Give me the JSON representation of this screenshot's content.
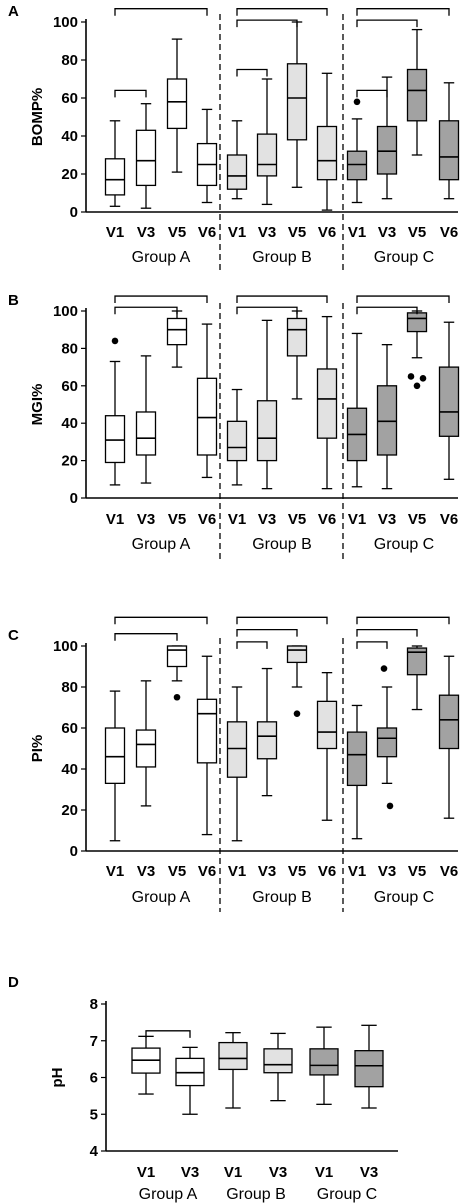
{
  "chart_data": [
    {
      "type": "box",
      "panel": "A",
      "ylabel": "BOMP%",
      "ylim": [
        0,
        100
      ],
      "yticks": [
        0,
        20,
        40,
        60,
        80,
        100
      ],
      "groups": [
        "Group A",
        "Group B",
        "Group C"
      ],
      "categories": [
        "V1",
        "V3",
        "V5",
        "V6"
      ],
      "group_dividers": "dashed",
      "group_fills": [
        "#ffffff",
        "#e2e2e2",
        "#a2a2a2"
      ],
      "boxes": [
        {
          "group": 0,
          "cat": 0,
          "min": 3,
          "q1": 9,
          "median": 17,
          "q3": 28,
          "max": 48,
          "outliers": []
        },
        {
          "group": 0,
          "cat": 1,
          "min": 2,
          "q1": 14,
          "median": 27,
          "q3": 43,
          "max": 57,
          "outliers": []
        },
        {
          "group": 0,
          "cat": 2,
          "min": 21,
          "q1": 44,
          "median": 58,
          "q3": 70,
          "max": 91,
          "outliers": []
        },
        {
          "group": 0,
          "cat": 3,
          "min": 5,
          "q1": 14,
          "median": 25,
          "q3": 36,
          "max": 54,
          "outliers": []
        },
        {
          "group": 1,
          "cat": 0,
          "min": 7,
          "q1": 12,
          "median": 19,
          "q3": 30,
          "max": 48,
          "outliers": []
        },
        {
          "group": 1,
          "cat": 1,
          "min": 4,
          "q1": 19,
          "median": 25,
          "q3": 41,
          "max": 70,
          "outliers": []
        },
        {
          "group": 1,
          "cat": 2,
          "min": 13,
          "q1": 38,
          "median": 60,
          "q3": 78,
          "max": 100,
          "outliers": []
        },
        {
          "group": 1,
          "cat": 3,
          "min": 1,
          "q1": 17,
          "median": 27,
          "q3": 45,
          "max": 73,
          "outliers": []
        },
        {
          "group": 2,
          "cat": 0,
          "min": 5,
          "q1": 17,
          "median": 25,
          "q3": 32,
          "max": 49,
          "outliers": [
            58
          ]
        },
        {
          "group": 2,
          "cat": 1,
          "min": 7,
          "q1": 20,
          "median": 32,
          "q3": 45,
          "max": 71,
          "outliers": []
        },
        {
          "group": 2,
          "cat": 2,
          "min": 30,
          "q1": 48,
          "median": 64,
          "q3": 75,
          "max": 96,
          "outliers": []
        },
        {
          "group": 2,
          "cat": 3,
          "min": 7,
          "q1": 17,
          "median": 29,
          "q3": 48,
          "max": 68,
          "outliers": []
        }
      ],
      "brackets": [
        {
          "group": 0,
          "from": 0,
          "to": 3,
          "y": 107
        },
        {
          "group": 0,
          "from": 0,
          "to": 1,
          "y": 64
        },
        {
          "group": 1,
          "from": 0,
          "to": 3,
          "y": 107
        },
        {
          "group": 1,
          "from": 0,
          "to": 2,
          "y": 101
        },
        {
          "group": 1,
          "from": 0,
          "to": 1,
          "y": 75
        },
        {
          "group": 2,
          "from": 0,
          "to": 3,
          "y": 107
        },
        {
          "group": 2,
          "from": 0,
          "to": 2,
          "y": 101
        },
        {
          "group": 2,
          "from": 0,
          "to": 1,
          "y": 64
        }
      ]
    },
    {
      "type": "box",
      "panel": "B",
      "ylabel": "MGI%",
      "ylim": [
        0,
        100
      ],
      "yticks": [
        0,
        20,
        40,
        60,
        80,
        100
      ],
      "groups": [
        "Group A",
        "Group B",
        "Group C"
      ],
      "categories": [
        "V1",
        "V3",
        "V5",
        "V6"
      ],
      "group_dividers": "dashed",
      "group_fills": [
        "#ffffff",
        "#e2e2e2",
        "#a2a2a2"
      ],
      "boxes": [
        {
          "group": 0,
          "cat": 0,
          "min": 7,
          "q1": 19,
          "median": 31,
          "q3": 44,
          "max": 73,
          "outliers": [
            84
          ]
        },
        {
          "group": 0,
          "cat": 1,
          "min": 8,
          "q1": 23,
          "median": 32,
          "q3": 46,
          "max": 76,
          "outliers": []
        },
        {
          "group": 0,
          "cat": 2,
          "min": 70,
          "q1": 82,
          "median": 90,
          "q3": 96,
          "max": 100,
          "outliers": []
        },
        {
          "group": 0,
          "cat": 3,
          "min": 11,
          "q1": 23,
          "median": 43,
          "q3": 64,
          "max": 93,
          "outliers": []
        },
        {
          "group": 1,
          "cat": 0,
          "min": 7,
          "q1": 20,
          "median": 27,
          "q3": 41,
          "max": 58,
          "outliers": []
        },
        {
          "group": 1,
          "cat": 1,
          "min": 5,
          "q1": 20,
          "median": 32,
          "q3": 52,
          "max": 95,
          "outliers": []
        },
        {
          "group": 1,
          "cat": 2,
          "min": 53,
          "q1": 76,
          "median": 90,
          "q3": 96,
          "max": 100,
          "outliers": []
        },
        {
          "group": 1,
          "cat": 3,
          "min": 5,
          "q1": 32,
          "median": 53,
          "q3": 69,
          "max": 97,
          "outliers": []
        },
        {
          "group": 2,
          "cat": 0,
          "min": 6,
          "q1": 20,
          "median": 34,
          "q3": 48,
          "max": 88,
          "outliers": []
        },
        {
          "group": 2,
          "cat": 1,
          "min": 5,
          "q1": 23,
          "median": 41,
          "q3": 60,
          "max": 82,
          "outliers": []
        },
        {
          "group": 2,
          "cat": 2,
          "min": 75,
          "q1": 89,
          "median": 96,
          "q3": 99,
          "max": 100,
          "outliers": [
            65,
            60,
            64
          ]
        },
        {
          "group": 2,
          "cat": 3,
          "min": 10,
          "q1": 33,
          "median": 46,
          "q3": 70,
          "max": 94,
          "outliers": []
        }
      ],
      "brackets": [
        {
          "group": 0,
          "from": 0,
          "to": 3,
          "y": 108
        },
        {
          "group": 0,
          "from": 0,
          "to": 2,
          "y": 102
        },
        {
          "group": 1,
          "from": 0,
          "to": 3,
          "y": 108
        },
        {
          "group": 1,
          "from": 0,
          "to": 2,
          "y": 102
        },
        {
          "group": 2,
          "from": 0,
          "to": 3,
          "y": 108
        },
        {
          "group": 2,
          "from": 0,
          "to": 2,
          "y": 102
        }
      ]
    },
    {
      "type": "box",
      "panel": "C",
      "ylabel": "PI%",
      "ylim": [
        0,
        100
      ],
      "yticks": [
        0,
        20,
        40,
        60,
        80,
        100
      ],
      "groups": [
        "Group A",
        "Group B",
        "Group C"
      ],
      "categories": [
        "V1",
        "V3",
        "V5",
        "V6"
      ],
      "group_dividers": "dashed",
      "group_fills": [
        "#ffffff",
        "#e2e2e2",
        "#a2a2a2"
      ],
      "boxes": [
        {
          "group": 0,
          "cat": 0,
          "min": 5,
          "q1": 33,
          "median": 46,
          "q3": 60,
          "max": 78,
          "outliers": []
        },
        {
          "group": 0,
          "cat": 1,
          "min": 22,
          "q1": 41,
          "median": 52,
          "q3": 59,
          "max": 83,
          "outliers": []
        },
        {
          "group": 0,
          "cat": 2,
          "min": 83,
          "q1": 90,
          "median": 98,
          "q3": 100,
          "max": 100,
          "outliers": [
            75
          ]
        },
        {
          "group": 0,
          "cat": 3,
          "min": 8,
          "q1": 43,
          "median": 67,
          "q3": 74,
          "max": 95,
          "outliers": []
        },
        {
          "group": 1,
          "cat": 0,
          "min": 5,
          "q1": 36,
          "median": 50,
          "q3": 63,
          "max": 80,
          "outliers": []
        },
        {
          "group": 1,
          "cat": 1,
          "min": 27,
          "q1": 45,
          "median": 56,
          "q3": 63,
          "max": 89,
          "outliers": []
        },
        {
          "group": 1,
          "cat": 2,
          "min": 80,
          "q1": 92,
          "median": 98,
          "q3": 100,
          "max": 100,
          "outliers": [
            67
          ]
        },
        {
          "group": 1,
          "cat": 3,
          "min": 15,
          "q1": 50,
          "median": 58,
          "q3": 73,
          "max": 87,
          "outliers": []
        },
        {
          "group": 2,
          "cat": 0,
          "min": 6,
          "q1": 32,
          "median": 47,
          "q3": 58,
          "max": 71,
          "outliers": []
        },
        {
          "group": 2,
          "cat": 1,
          "min": 33,
          "q1": 46,
          "median": 55,
          "q3": 60,
          "max": 80,
          "outliers": [
            89,
            22
          ]
        },
        {
          "group": 2,
          "cat": 2,
          "min": 69,
          "q1": 86,
          "median": 97,
          "q3": 99,
          "max": 100,
          "outliers": []
        },
        {
          "group": 2,
          "cat": 3,
          "min": 16,
          "q1": 50,
          "median": 64,
          "q3": 76,
          "max": 95,
          "outliers": []
        }
      ],
      "brackets": [
        {
          "group": 0,
          "from": 0,
          "to": 3,
          "y": 114
        },
        {
          "group": 0,
          "from": 0,
          "to": 2,
          "y": 106
        },
        {
          "group": 1,
          "from": 0,
          "to": 3,
          "y": 114
        },
        {
          "group": 1,
          "from": 0,
          "to": 2,
          "y": 108
        },
        {
          "group": 1,
          "from": 0,
          "to": 1,
          "y": 102
        },
        {
          "group": 2,
          "from": 0,
          "to": 3,
          "y": 114
        },
        {
          "group": 2,
          "from": 0,
          "to": 2,
          "y": 108
        },
        {
          "group": 2,
          "from": 0,
          "to": 1,
          "y": 102
        }
      ]
    },
    {
      "type": "box",
      "panel": "D",
      "ylabel": "pH",
      "ylim": [
        4,
        8
      ],
      "yticks": [
        4,
        5,
        6,
        7,
        8
      ],
      "groups": [
        "Group A",
        "Group B",
        "Group C"
      ],
      "categories": [
        "V1",
        "V3"
      ],
      "group_dividers": "none",
      "group_fills": [
        "#ffffff",
        "#e2e2e2",
        "#a2a2a2"
      ],
      "boxes": [
        {
          "group": 0,
          "cat": 0,
          "min": 5.55,
          "q1": 6.12,
          "median": 6.47,
          "q3": 6.8,
          "max": 7.12,
          "outliers": []
        },
        {
          "group": 0,
          "cat": 1,
          "min": 5.0,
          "q1": 5.78,
          "median": 6.13,
          "q3": 6.52,
          "max": 6.82,
          "outliers": []
        },
        {
          "group": 1,
          "cat": 0,
          "min": 5.17,
          "q1": 6.22,
          "median": 6.52,
          "q3": 6.95,
          "max": 7.22,
          "outliers": []
        },
        {
          "group": 1,
          "cat": 1,
          "min": 5.37,
          "q1": 6.13,
          "median": 6.35,
          "q3": 6.78,
          "max": 7.2,
          "outliers": []
        },
        {
          "group": 2,
          "cat": 0,
          "min": 5.27,
          "q1": 6.07,
          "median": 6.33,
          "q3": 6.78,
          "max": 7.37,
          "outliers": []
        },
        {
          "group": 2,
          "cat": 1,
          "min": 5.17,
          "q1": 5.75,
          "median": 6.32,
          "q3": 6.73,
          "max": 7.42,
          "outliers": []
        }
      ],
      "brackets": [
        {
          "group": 0,
          "from": 0,
          "to": 1,
          "y": 7.27
        }
      ]
    }
  ]
}
